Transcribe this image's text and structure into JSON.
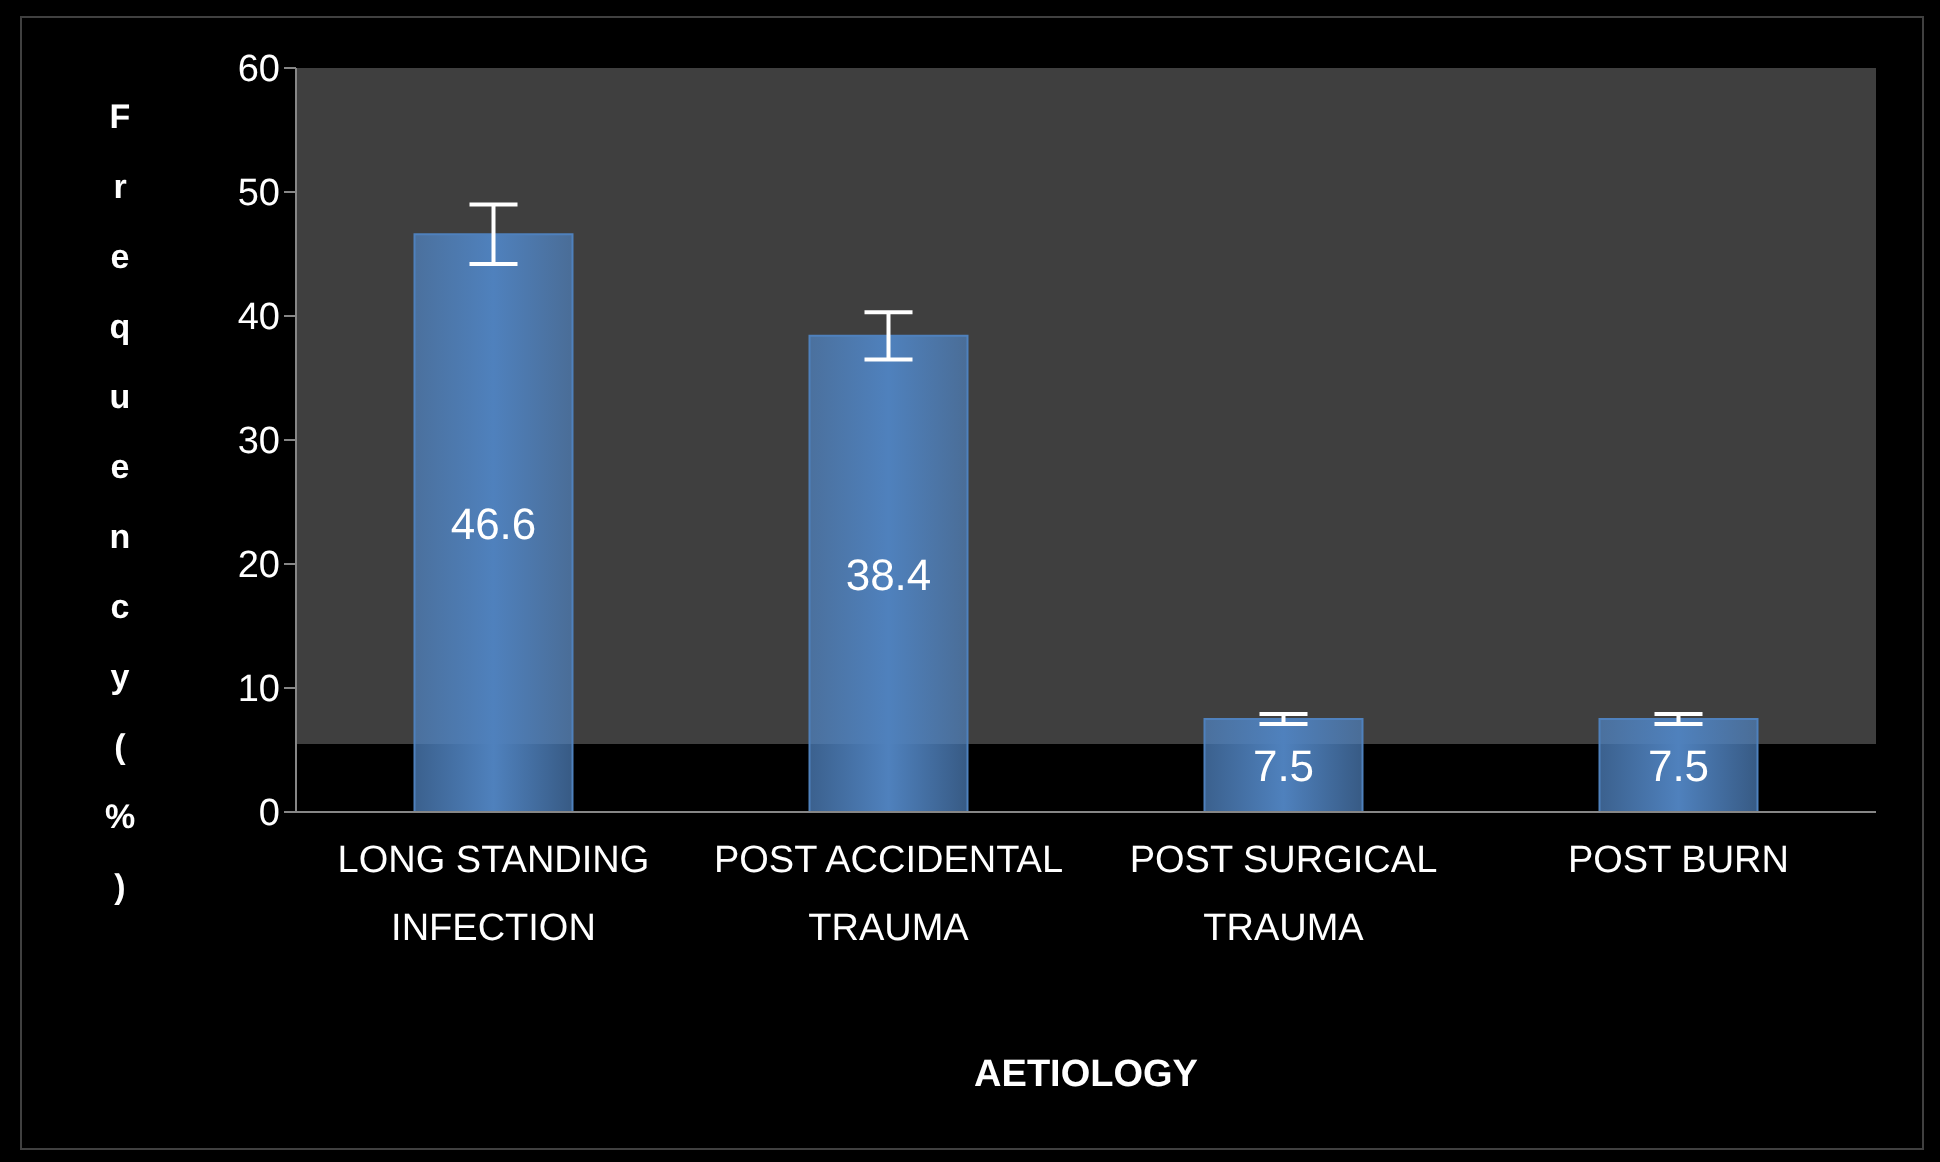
{
  "chart_data": {
    "type": "bar",
    "xlabel": "AETIOLOGY",
    "ylabel": "Frequency (%)",
    "categories": [
      "LONG STANDING INFECTION",
      "POST ACCIDENTAL TRAUMA",
      "POST SURGICAL TRAUMA",
      "POST BURN"
    ],
    "values": [
      46.6,
      38.4,
      7.5,
      7.5
    ],
    "errors": [
      2.4,
      1.9,
      0.4,
      0.4
    ],
    "color": "#4f81bd",
    "ylim": [
      0,
      60
    ],
    "yticks": [
      0,
      10,
      20,
      30,
      40,
      50,
      60
    ],
    "grid": false,
    "legend": false,
    "data_labels": true
  }
}
